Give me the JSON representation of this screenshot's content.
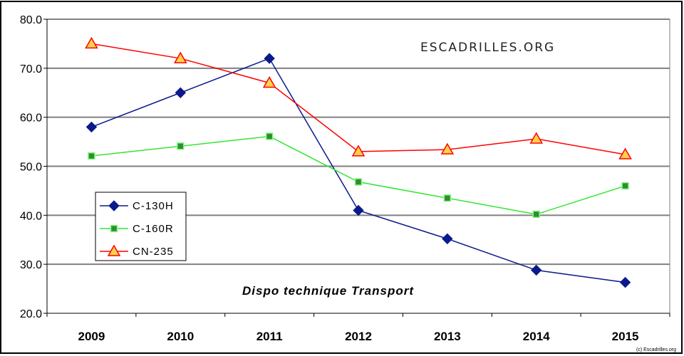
{
  "chart_data": {
    "type": "line",
    "title": "",
    "xlabel": "",
    "ylabel": "",
    "categories": [
      "2009",
      "2010",
      "2011",
      "2012",
      "2013",
      "2014",
      "2015"
    ],
    "ylim": [
      20,
      80
    ],
    "yticks": [
      "20.0",
      "30.0",
      "40.0",
      "50.0",
      "60.0",
      "70.0",
      "80.0"
    ],
    "grid": true,
    "legend_position": "left",
    "series": [
      {
        "name": "C-130H",
        "color": "#0a1a8c",
        "marker": "diamond",
        "values": [
          58,
          65,
          72,
          41,
          35.2,
          28.8,
          26.3
        ]
      },
      {
        "name": "C-160R",
        "color": "#33e633",
        "marker": "square",
        "values": [
          52.1,
          54.1,
          56.1,
          46.8,
          43.5,
          40.2,
          46
        ]
      },
      {
        "name": "CN-235",
        "color": "#ff0000",
        "marker": "triangle",
        "values": [
          75,
          72,
          67,
          53,
          53.4,
          55.6,
          52.4
        ]
      }
    ],
    "annotations": {
      "watermark": "ESCADRILLES.ORG",
      "subtitle": "Dispo technique Transport",
      "copyright": "(c) Escadrilles.org"
    }
  }
}
